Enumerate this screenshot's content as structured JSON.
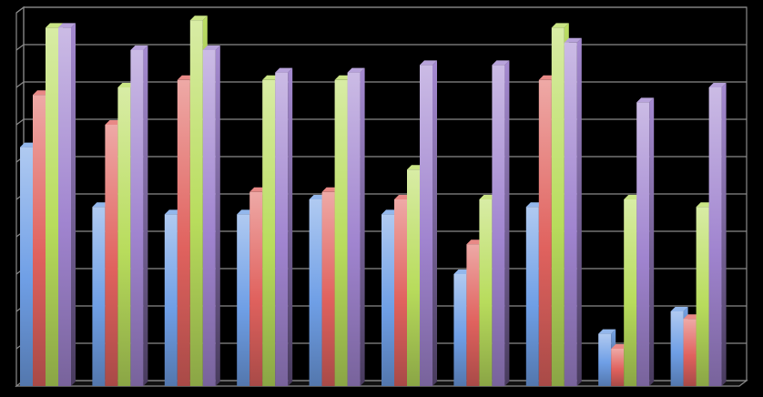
{
  "chart_data": {
    "type": "bar",
    "style": "3d-clustered-column",
    "title": "",
    "xlabel": "",
    "ylabel": "",
    "ylim": [
      0,
      10
    ],
    "grid": true,
    "legend": "none",
    "categories": [
      "",
      "",
      "",
      "",
      "",
      "",
      "",
      "",
      "",
      ""
    ],
    "series": [
      {
        "color": "#6f9fe6",
        "values": [
          6.4,
          4.8,
          4.6,
          4.6,
          5.0,
          4.6,
          3.0,
          4.8,
          1.4,
          2.0
        ]
      },
      {
        "color": "#e0625e",
        "values": [
          7.8,
          7.0,
          8.2,
          5.2,
          5.2,
          5.0,
          3.8,
          8.2,
          1.0,
          1.8
        ]
      },
      {
        "color": "#b8dc5c",
        "values": [
          9.6,
          8.0,
          9.8,
          8.2,
          8.2,
          5.8,
          5.0,
          9.6,
          5.0,
          4.8
        ]
      },
      {
        "color": "#a084cf",
        "values": [
          9.6,
          9.0,
          9.0,
          8.4,
          8.4,
          8.6,
          8.6,
          9.2,
          7.6,
          8.0
        ]
      }
    ]
  }
}
